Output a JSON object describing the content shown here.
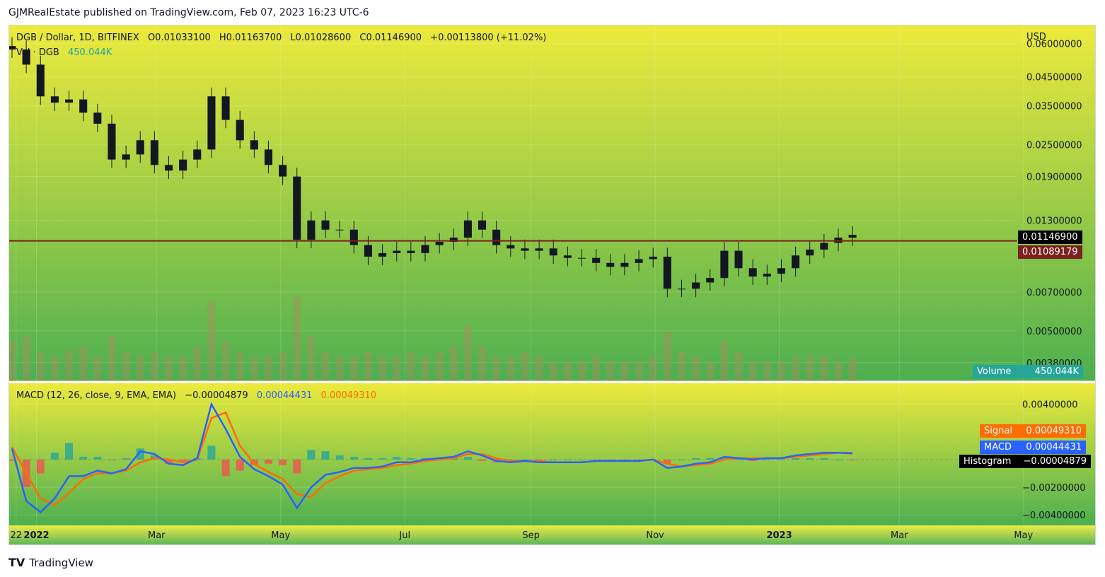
{
  "header": {
    "publisher_line": "GJMRealEstate published on TradingView.com, Feb 07, 2023 16:23 UTC-6"
  },
  "main_legend": {
    "symbol": "DGB / Dollar, 1D, BITFINEX",
    "open": "O0.01033100",
    "high": "H0.01163700",
    "low": "L0.01028600",
    "close": "C0.01146900",
    "change": "+0.00113800 (+11.02%)",
    "vol_label": "Vol · DGB",
    "vol_value": "450.044K"
  },
  "macd_legend": {
    "label": "MACD (12, 26, close, 9, EMA, EMA)",
    "histogram_value": "−0.00004879",
    "macd_value": "0.00044431",
    "signal_value": "0.00049310"
  },
  "axis": {
    "currency": "USD",
    "price_ticks": [
      "0.06000000",
      "0.04500000",
      "0.03500000",
      "0.02500000",
      "0.01900000",
      "0.01300000",
      "0.00700000",
      "0.00500000",
      "0.00380000"
    ],
    "macd_ticks": [
      "0.00400000",
      "−0.00200000",
      "−0.00400000"
    ],
    "time_ticks": [
      "22",
      "2022",
      "Mar",
      "May",
      "Jul",
      "Sep",
      "Nov",
      "2023",
      "Mar",
      "May"
    ]
  },
  "price_tags": {
    "last_price": "0.01146900",
    "line_price": "0.01089179",
    "volume_label": "Volume",
    "volume_value": "450.044K",
    "signal_label": "Signal",
    "signal_value": "0.00049310",
    "macd_label": "MACD",
    "macd_value": "0.00044431",
    "histogram_label": "Histogram",
    "histogram_value": "−0.00004879"
  },
  "colors": {
    "bg_top": "#ecea3c",
    "bg_bottom": "#4caf50",
    "candle": "#131722",
    "hline": "#7b1f1f",
    "macd": "#2962ff",
    "signal": "#ff6d00",
    "hist_pos": "#26a69a",
    "hist_neg": "#ef5350",
    "volume": "#a88d5e"
  },
  "footer": {
    "brand": "TradingView"
  },
  "chart_data": {
    "type": "line",
    "title": "DGB / Dollar, 1D, BITFINEX",
    "scale": "log",
    "ylim": [
      0.0034,
      0.066
    ],
    "hline": 0.01089179,
    "price_series": {
      "name": "DGB / Dollar",
      "x": [
        "2021-12-20",
        "2021-12-27",
        "2022-01-03",
        "2022-01-10",
        "2022-01-17",
        "2022-01-24",
        "2022-01-31",
        "2022-02-07",
        "2022-02-14",
        "2022-02-21",
        "2022-02-28",
        "2022-03-07",
        "2022-03-14",
        "2022-03-21",
        "2022-03-28",
        "2022-04-04",
        "2022-04-11",
        "2022-04-18",
        "2022-04-25",
        "2022-05-02",
        "2022-05-09",
        "2022-05-16",
        "2022-05-23",
        "2022-05-30",
        "2022-06-06",
        "2022-06-13",
        "2022-06-20",
        "2022-06-27",
        "2022-07-04",
        "2022-07-11",
        "2022-07-18",
        "2022-07-25",
        "2022-08-01",
        "2022-08-08",
        "2022-08-15",
        "2022-08-22",
        "2022-08-29",
        "2022-09-05",
        "2022-09-12",
        "2022-09-19",
        "2022-09-26",
        "2022-10-03",
        "2022-10-10",
        "2022-10-17",
        "2022-10-24",
        "2022-10-31",
        "2022-11-07",
        "2022-11-14",
        "2022-11-21",
        "2022-11-28",
        "2022-12-05",
        "2022-12-12",
        "2022-12-19",
        "2022-12-26",
        "2023-01-02",
        "2023-01-09",
        "2023-01-16",
        "2023-01-23",
        "2023-01-30",
        "2023-02-06"
      ],
      "values": [
        0.057,
        0.05,
        0.038,
        0.036,
        0.037,
        0.033,
        0.03,
        0.022,
        0.023,
        0.026,
        0.021,
        0.02,
        0.022,
        0.024,
        0.038,
        0.031,
        0.026,
        0.024,
        0.021,
        0.019,
        0.011,
        0.013,
        0.012,
        0.012,
        0.0105,
        0.0095,
        0.0098,
        0.01,
        0.0098,
        0.0105,
        0.0108,
        0.0112,
        0.013,
        0.012,
        0.0105,
        0.0102,
        0.01,
        0.0102,
        0.0096,
        0.0094,
        0.0094,
        0.009,
        0.0087,
        0.009,
        0.0093,
        0.0095,
        0.0072,
        0.0072,
        0.0076,
        0.0079,
        0.01,
        0.0086,
        0.008,
        0.0082,
        0.0086,
        0.0096,
        0.0101,
        0.0107,
        0.0112,
        0.01147
      ]
    },
    "volume_series": {
      "name": "Volume",
      "values": [
        0.8,
        0.9,
        0.6,
        0.5,
        0.6,
        0.7,
        0.5,
        0.9,
        0.6,
        0.5,
        0.6,
        0.5,
        0.5,
        0.7,
        1.6,
        0.8,
        0.6,
        0.5,
        0.5,
        0.6,
        1.7,
        0.9,
        0.6,
        0.5,
        0.5,
        0.6,
        0.5,
        0.5,
        0.6,
        0.5,
        0.6,
        0.7,
        1.1,
        0.7,
        0.5,
        0.5,
        0.6,
        0.5,
        0.4,
        0.4,
        0.4,
        0.5,
        0.4,
        0.4,
        0.4,
        0.5,
        1.0,
        0.6,
        0.5,
        0.4,
        0.8,
        0.6,
        0.4,
        0.4,
        0.4,
        0.5,
        0.5,
        0.5,
        0.4,
        0.45
      ]
    },
    "macd_series": {
      "ylim": [
        -0.0045,
        0.0048
      ],
      "macd": [
        0.0008,
        -0.003,
        -0.0038,
        -0.0028,
        -0.0012,
        -0.0012,
        -0.0008,
        -0.001,
        -0.0007,
        0.0006,
        0.0004,
        -0.0003,
        -0.0004,
        0.0001,
        0.004,
        0.0022,
        0.0002,
        -0.0007,
        -0.0012,
        -0.0018,
        -0.0035,
        -0.002,
        -0.0011,
        -0.0009,
        -0.0006,
        -0.0006,
        -0.0005,
        -0.0002,
        -0.0002,
        0.0,
        0.0001,
        0.0002,
        0.0006,
        0.0003,
        -0.0001,
        -0.0002,
        -0.0001,
        -0.0002,
        -0.0002,
        -0.0002,
        -0.0002,
        -0.0001,
        -0.0001,
        -0.0001,
        -0.0001,
        0.0,
        -0.0006,
        -0.0005,
        -0.0003,
        -0.0002,
        0.0002,
        0.0001,
        0.0,
        0.0001,
        0.0001,
        0.0003,
        0.0004,
        0.0005,
        0.0005,
        0.00044431
      ],
      "signal": [
        0.0009,
        -0.001,
        -0.0028,
        -0.0033,
        -0.0024,
        -0.0014,
        -0.001,
        -0.001,
        -0.0008,
        -0.0002,
        0.0001,
        0.0,
        -0.0002,
        0.0,
        0.003,
        0.0034,
        0.001,
        -0.0003,
        -0.0009,
        -0.0014,
        -0.0025,
        -0.0027,
        -0.0017,
        -0.0012,
        -0.0008,
        -0.0007,
        -0.0006,
        -0.0004,
        -0.0003,
        -0.0001,
        0.0,
        0.0001,
        0.0004,
        0.0004,
        0.0001,
        -0.0001,
        -0.0001,
        -0.0001,
        -0.0002,
        -0.0002,
        -0.0002,
        -0.0001,
        -0.0001,
        -0.0001,
        -0.0001,
        0.0,
        -0.0003,
        -0.0005,
        -0.0004,
        -0.0003,
        0.0,
        0.0001,
        0.0001,
        0.0001,
        0.0001,
        0.0002,
        0.0003,
        0.0004,
        0.0005,
        0.0004931
      ]
    }
  }
}
